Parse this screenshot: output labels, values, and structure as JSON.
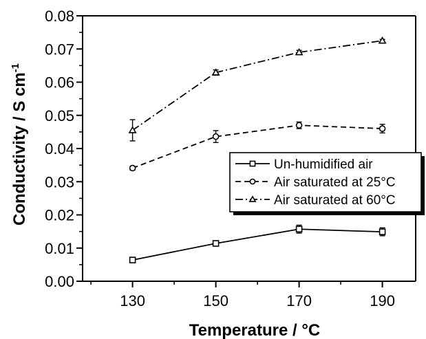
{
  "chart_data": {
    "type": "line",
    "xlabel": "Temperature / °C",
    "ylabel": "Conductivity / S cm",
    "ylabel_superscript": "-1",
    "xlim": [
      118,
      198
    ],
    "ylim": [
      0.0,
      0.08
    ],
    "xticks": [
      130,
      150,
      170,
      190
    ],
    "yticks": [
      0.0,
      0.01,
      0.02,
      0.03,
      0.04,
      0.05,
      0.06,
      0.07,
      0.08
    ],
    "ytick_labels": [
      "0.00",
      "0.01",
      "0.02",
      "0.03",
      "0.04",
      "0.05",
      "0.06",
      "0.07",
      "0.08"
    ],
    "grid": false,
    "legend_position": "center-right",
    "series": [
      {
        "name": "Un-humidified air",
        "marker": "square",
        "dash": "solid",
        "color": "#000000",
        "x": [
          130,
          150,
          170,
          190
        ],
        "y": [
          0.0064,
          0.0114,
          0.0157,
          0.0149
        ],
        "err": [
          0.0004,
          0.0004,
          0.0012,
          0.0012
        ]
      },
      {
        "name": "Air saturated at 25°C",
        "marker": "circle",
        "dash": "dashed",
        "color": "#000000",
        "x": [
          130,
          150,
          170,
          190
        ],
        "y": [
          0.0341,
          0.0436,
          0.047,
          0.046
        ],
        "err": [
          0.0006,
          0.0018,
          0.001,
          0.0013
        ]
      },
      {
        "name": "Air saturated at 60°C",
        "marker": "triangle",
        "dash": "dashdot",
        "color": "#000000",
        "x": [
          130,
          150,
          170,
          190
        ],
        "y": [
          0.0455,
          0.0629,
          0.069,
          0.0725
        ],
        "err": [
          0.0032,
          0.0008,
          0.0006,
          0.0004
        ]
      }
    ]
  }
}
